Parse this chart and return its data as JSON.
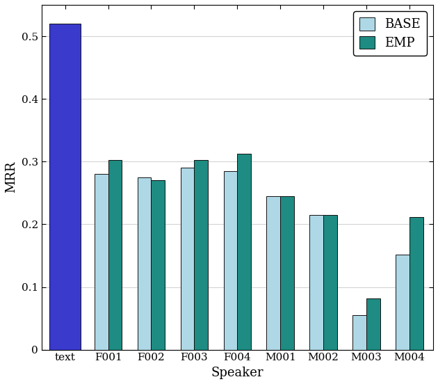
{
  "categories": [
    "text",
    "F001",
    "F002",
    "F003",
    "F004",
    "M001",
    "M002",
    "M003",
    "M004"
  ],
  "base_values": [
    0.52,
    0.28,
    0.275,
    0.29,
    0.285,
    0.245,
    0.215,
    0.055,
    0.152
  ],
  "emp_values": [
    0.52,
    0.302,
    0.27,
    0.302,
    0.312,
    0.245,
    0.215,
    0.082,
    0.212
  ],
  "text_bar_color": "#3a3acc",
  "base_color": "#aed8e6",
  "emp_color": "#1e8c82",
  "edge_color": "#111111",
  "ylabel": "MRR",
  "xlabel": "Speaker",
  "ylim": [
    0,
    0.55
  ],
  "yticks": [
    0,
    0.1,
    0.2,
    0.3,
    0.4,
    0.5
  ],
  "ytick_labels": [
    "0",
    "0.1",
    "0.2",
    "0.3",
    "0.4",
    "0.5"
  ],
  "legend_labels": [
    "BASE",
    "EMP"
  ],
  "bar_width": 0.32,
  "figsize": [
    6.3,
    5.52
  ],
  "dpi": 100,
  "font_family": "DejaVu Serif",
  "axis_label_fontsize": 13,
  "tick_fontsize": 11,
  "legend_fontsize": 13
}
